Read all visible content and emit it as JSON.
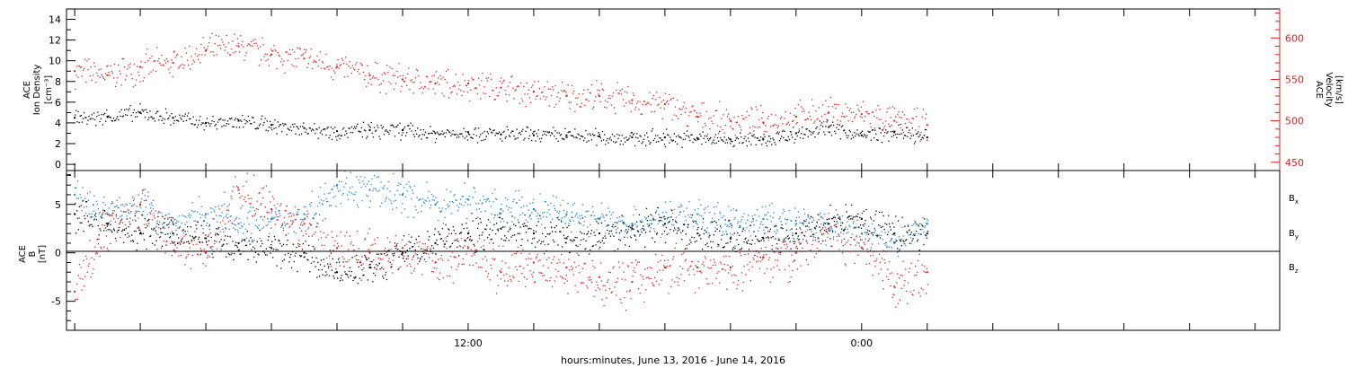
{
  "colors": {
    "axis": "#000000",
    "density": "#000000",
    "velocity": "#e0201c",
    "bx": "#000000",
    "by": "#1b86d6",
    "bz": "#e0201c"
  },
  "x_axis": {
    "title": "hours:minutes, June 13, 2016 - June 14, 2016",
    "ticks": [
      "12:00",
      "0:00"
    ]
  },
  "top_panel": {
    "left_label": [
      "ACE",
      "Ion Density",
      "[cm⁻³]"
    ],
    "right_label": [
      "ACE",
      "Velocity",
      "[km/s]"
    ],
    "left_ticks": [
      "0",
      "2",
      "4",
      "6",
      "8",
      "10",
      "12",
      "14"
    ],
    "right_ticks": [
      "450",
      "500",
      "550",
      "600"
    ]
  },
  "bottom_panel": {
    "left_label": [
      "ACE",
      "B",
      "[nT]"
    ],
    "right_labels": [
      "Bx",
      "By",
      "Bz"
    ],
    "left_ticks": [
      "-5",
      "0",
      "5"
    ]
  },
  "chart_data": [
    {
      "type": "scatter",
      "x_units": "hours from 00:00 June 13, 2016",
      "xlim": [
        -0.25,
        36.75
      ],
      "ylim": [
        -0.6,
        15
      ],
      "y2lim": [
        440,
        635
      ],
      "grid": false,
      "series": [
        {
          "name": "Ion Density",
          "axis": "left",
          "x": [
            0,
            1,
            2,
            3,
            4,
            5,
            6,
            7,
            8,
            9,
            10,
            11,
            12,
            13,
            14,
            15,
            16,
            17,
            18,
            19,
            20,
            21,
            22,
            23,
            24,
            25,
            26
          ],
          "y": [
            4.5,
            4.6,
            5.0,
            4.5,
            4.0,
            4.2,
            3.8,
            3.5,
            3.2,
            3.3,
            3.3,
            3.0,
            3.1,
            2.9,
            2.8,
            2.8,
            2.7,
            2.6,
            2.6,
            2.5,
            2.4,
            2.4,
            3.0,
            3.6,
            2.8,
            3.1,
            2.6
          ]
        },
        {
          "name": "Velocity",
          "axis": "right",
          "x": [
            0,
            1,
            2,
            3,
            4,
            5,
            6,
            7,
            8,
            9,
            10,
            11,
            12,
            13,
            14,
            15,
            16,
            17,
            18,
            19,
            20,
            21,
            22,
            23,
            24,
            25,
            26
          ],
          "y": [
            560,
            555,
            565,
            570,
            585,
            590,
            580,
            575,
            565,
            555,
            550,
            545,
            545,
            540,
            535,
            530,
            530,
            525,
            520,
            505,
            500,
            498,
            505,
            510,
            508,
            500,
            495
          ]
        }
      ]
    },
    {
      "type": "scatter",
      "x_units": "hours from 00:00 June 13, 2016",
      "xlim": [
        -0.25,
        36.75
      ],
      "ylim": [
        -8,
        8.5
      ],
      "grid": false,
      "series": [
        {
          "name": "Bx",
          "x": [
            0,
            1,
            2,
            3,
            4,
            5,
            6,
            7,
            8,
            9,
            10,
            11,
            12,
            13,
            14,
            15,
            16,
            17,
            18,
            19,
            20,
            21,
            22,
            23,
            24,
            25,
            26
          ],
          "y": [
            4.0,
            3.0,
            2.0,
            2.0,
            1.5,
            1.0,
            0.5,
            0.0,
            -2.0,
            -1.5,
            0.0,
            1.0,
            2.0,
            2.5,
            2.0,
            1.5,
            2.0,
            2.5,
            3.0,
            2.0,
            1.5,
            1.5,
            2.0,
            3.0,
            3.5,
            2.0,
            2.0
          ]
        },
        {
          "name": "By",
          "x": [
            0,
            1,
            2,
            3,
            4,
            5,
            6,
            7,
            8,
            9,
            10,
            11,
            12,
            13,
            14,
            15,
            16,
            17,
            18,
            19,
            20,
            21,
            22,
            23,
            24,
            25,
            26
          ],
          "y": [
            6.0,
            4.0,
            5.0,
            3.0,
            4.0,
            3.0,
            3.5,
            4.0,
            7.0,
            6.5,
            6.0,
            5.0,
            5.5,
            4.5,
            4.5,
            4.0,
            3.5,
            3.0,
            3.5,
            4.0,
            3.0,
            3.5,
            3.0,
            2.5,
            2.0,
            1.0,
            3.0
          ]
        },
        {
          "name": "Bz",
          "x": [
            0,
            1,
            2,
            3,
            4,
            5,
            6,
            7,
            8,
            9,
            10,
            11,
            12,
            13,
            14,
            15,
            16,
            17,
            18,
            19,
            20,
            21,
            22,
            23,
            24,
            25,
            26
          ],
          "y": [
            -4.0,
            3.0,
            5.0,
            1.0,
            0.0,
            6.5,
            4.5,
            3.0,
            0.5,
            0.0,
            0.5,
            -1.0,
            0.5,
            -2.0,
            -1.0,
            -1.5,
            -2.5,
            -3.0,
            -1.5,
            -1.5,
            -1.5,
            -0.5,
            0.0,
            2.5,
            0.5,
            -3.5,
            -2.0
          ]
        }
      ]
    }
  ]
}
